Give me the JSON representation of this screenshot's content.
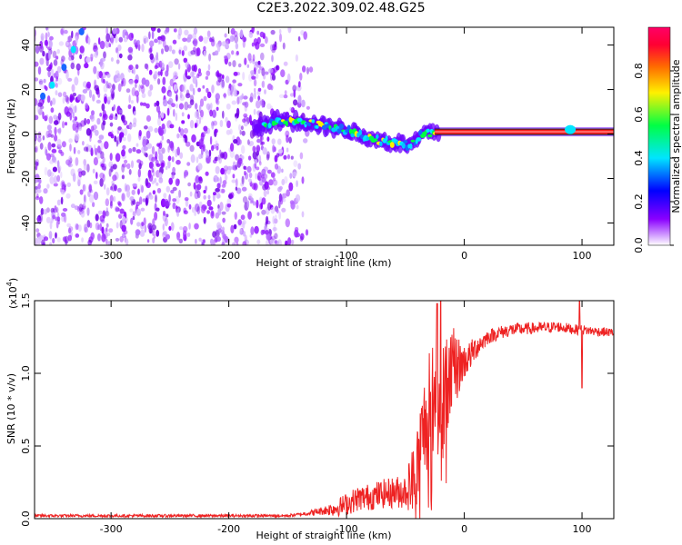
{
  "title": "C2E3.2022.309.02.48.G25",
  "chart_data": [
    {
      "type": "heatmap",
      "xlabel": "Height of straight line (km)",
      "ylabel": "Frequency (Hz)",
      "xlim": [
        -365,
        127
      ],
      "ylim": [
        -50,
        48
      ],
      "x_ticks": [
        -300,
        -200,
        -100,
        0,
        100
      ],
      "y_ticks": [
        -40,
        -20,
        0,
        20,
        40
      ],
      "colorbar": {
        "label": "Normalized spectral amplitude",
        "range": [
          0,
          1
        ],
        "ticks": [
          "0.0",
          "0.2",
          "0.4",
          "0.6",
          "0.8"
        ],
        "colors": [
          "#ffffff",
          "#8a00ff",
          "#0000ff",
          "#00e5ff",
          "#00ff44",
          "#fff000",
          "#ff6a00",
          "#ff0033",
          "#ff0066"
        ]
      },
      "features": {
        "noise_region_x": [
          -365,
          -130
        ],
        "noise_density_falloff_x": [
          -165,
          -130
        ],
        "signal_line": [
          [
            -175,
            3
          ],
          [
            -160,
            6
          ],
          [
            -140,
            6
          ],
          [
            -120,
            4
          ],
          [
            -100,
            2
          ],
          [
            -80,
            -2
          ],
          [
            -60,
            -4
          ],
          [
            -45,
            -5
          ],
          [
            -35,
            0
          ],
          [
            -25,
            1
          ],
          [
            0,
            1
          ],
          [
            50,
            1
          ],
          [
            90,
            2
          ],
          [
            127,
            1
          ]
        ],
        "strong_band_x": [
          -25,
          127
        ],
        "strong_band_freq": 1,
        "left_trace": [
          [
            -358,
            17
          ],
          [
            -350,
            22
          ],
          [
            -340,
            30
          ],
          [
            -332,
            38
          ],
          [
            -325,
            46
          ]
        ]
      }
    },
    {
      "type": "line",
      "xlabel": "Height of straight line (km)",
      "ylabel": "SNR (10 * v/v)",
      "multiplier_label": "(x10",
      "multiplier_exp": "4",
      "multiplier_close": ")",
      "xlim": [
        -365,
        127
      ],
      "ylim": [
        0,
        1.5
      ],
      "x_ticks": [
        -300,
        -200,
        -100,
        0,
        100
      ],
      "y_ticks": [
        "0.0",
        "0.5",
        "1.0",
        "1.5"
      ],
      "line_color": "#ee2222",
      "series": [
        {
          "points": [
            [
              -365,
              0.02
            ],
            [
              -300,
              0.02
            ],
            [
              -200,
              0.02
            ],
            [
              -150,
              0.02
            ],
            [
              -130,
              0.04
            ],
            [
              -110,
              0.07
            ],
            [
              -100,
              0.1
            ],
            [
              -90,
              0.14
            ],
            [
              -80,
              0.15
            ],
            [
              -70,
              0.17
            ],
            [
              -60,
              0.18
            ],
            [
              -50,
              0.19
            ],
            [
              -45,
              0.25
            ],
            [
              -40,
              0.35
            ],
            [
              -35,
              0.6
            ],
            [
              -30,
              0.75
            ],
            [
              -25,
              0.8
            ],
            [
              -20,
              0.85
            ],
            [
              -15,
              0.95
            ],
            [
              -10,
              1.02
            ],
            [
              -5,
              1.05
            ],
            [
              0,
              1.08
            ],
            [
              5,
              1.12
            ],
            [
              10,
              1.18
            ],
            [
              20,
              1.25
            ],
            [
              30,
              1.28
            ],
            [
              40,
              1.3
            ],
            [
              60,
              1.31
            ],
            [
              80,
              1.32
            ],
            [
              95,
              1.3
            ],
            [
              100,
              1.3
            ],
            [
              110,
              1.29
            ],
            [
              127,
              1.28
            ]
          ],
          "noise_amplitude": [
            [
              -365,
              0.01
            ],
            [
              -140,
              0.01
            ],
            [
              -120,
              0.03
            ],
            [
              -100,
              0.08
            ],
            [
              -70,
              0.1
            ],
            [
              -50,
              0.12
            ],
            [
              -40,
              0.3
            ],
            [
              -25,
              0.45
            ],
            [
              -15,
              0.4
            ],
            [
              0,
              0.12
            ],
            [
              20,
              0.05
            ],
            [
              60,
              0.04
            ],
            [
              127,
              0.03
            ]
          ],
          "spikes": [
            [
              -23,
              1.48
            ],
            [
              -20,
              1.5
            ],
            [
              98,
              1.5
            ],
            [
              100,
              0.9
            ]
          ]
        }
      ]
    }
  ]
}
